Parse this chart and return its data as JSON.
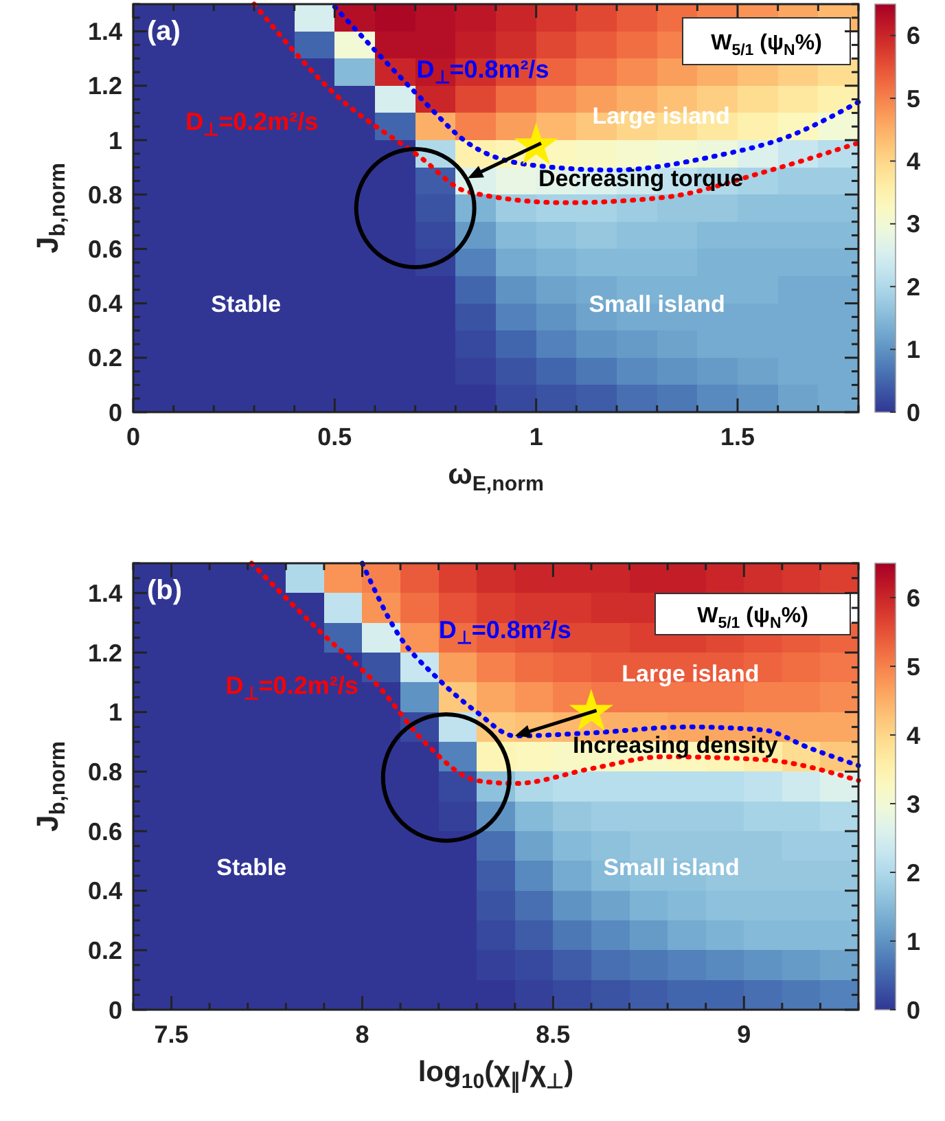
{
  "chart_data": [
    {
      "type": "heatmap",
      "xlabel": "ω$_{E,norm}$",
      "ylabel": "J$_{b,norm}$",
      "clabel": "W$_{5/1}$ (ψ$_{N}$%)",
      "x": [
        0.05,
        0.15,
        0.25,
        0.35,
        0.45,
        0.55,
        0.65,
        0.75,
        0.85,
        0.95,
        1.05,
        1.15,
        1.25,
        1.35,
        1.45,
        1.55,
        1.65,
        1.75
      ],
      "y": [
        1.45,
        1.35,
        1.25,
        1.15,
        1.05,
        0.95,
        0.85,
        0.75,
        0.65,
        0.55,
        0.45,
        0.35,
        0.25,
        0.15,
        0.05
      ],
      "xlim": [
        0,
        1.8
      ],
      "ylim": [
        0,
        1.5
      ],
      "clim": [
        0,
        6.5
      ],
      "cticks": [
        0,
        1,
        2,
        3,
        4,
        5,
        6
      ],
      "xticks": [
        0,
        {
          "value": 0.1,
          "label": null
        },
        {
          "value": 0.2,
          "label": null
        },
        {
          "value": 0.3,
          "label": null
        },
        {
          "value": 0.4,
          "label": null
        },
        0.5,
        {
          "value": 0.6,
          "label": null
        },
        {
          "value": 0.7,
          "label": null
        },
        {
          "value": 0.8,
          "label": null
        },
        {
          "value": 0.9,
          "label": null
        },
        1,
        {
          "value": 1.1,
          "label": null
        },
        {
          "value": 1.2,
          "label": null
        },
        {
          "value": 1.3,
          "label": null
        },
        {
          "value": 1.4,
          "label": null
        },
        1.5,
        {
          "value": 1.6,
          "label": null
        },
        {
          "value": 1.7,
          "label": null
        },
        {
          "value": 1.8,
          "label": null
        }
      ],
      "yticks": [
        0,
        {
          "value": 0.05,
          "label": null
        },
        {
          "value": 0.1,
          "label": null
        },
        {
          "value": 0.15,
          "label": null
        },
        0.2,
        {
          "value": 0.25,
          "label": null
        },
        {
          "value": 0.3,
          "label": null
        },
        {
          "value": 0.35,
          "label": null
        },
        0.4,
        {
          "value": 0.45,
          "label": null
        },
        {
          "value": 0.5,
          "label": null
        },
        {
          "value": 0.55,
          "label": null
        },
        0.6,
        {
          "value": 0.65,
          "label": null
        },
        {
          "value": 0.7,
          "label": null
        },
        {
          "value": 0.75,
          "label": null
        },
        0.8,
        {
          "value": 0.85,
          "label": null
        },
        {
          "value": 0.9,
          "label": null
        },
        {
          "value": 0.95,
          "label": null
        },
        1,
        {
          "value": 1.05,
          "label": null
        },
        {
          "value": 1.1,
          "label": null
        },
        {
          "value": 1.15,
          "label": null
        },
        1.2,
        {
          "value": 1.25,
          "label": null
        },
        {
          "value": 1.3,
          "label": null
        },
        {
          "value": 1.35,
          "label": null
        },
        1.4,
        {
          "value": 1.45,
          "label": null
        },
        {
          "value": 1.5,
          "label": null
        }
      ],
      "cells": [
        [
          0,
          0,
          0,
          0,
          2.5,
          6.3,
          6.4,
          6.3,
          6.2,
          6.0,
          5.8,
          5.6,
          5.4,
          5.2,
          5.0,
          4.8,
          4.6,
          4.4
        ],
        [
          0,
          0,
          0,
          0,
          0.5,
          3.0,
          6.3,
          6.3,
          6.1,
          5.9,
          5.6,
          5.4,
          5.2,
          5.0,
          null,
          null,
          null,
          null
        ],
        [
          0,
          0,
          0,
          0,
          0,
          1.5,
          6.0,
          6.2,
          5.9,
          5.6,
          5.3,
          5.1,
          4.9,
          4.7,
          4.5,
          4.3,
          4.1,
          3.9
        ],
        [
          0,
          0,
          0,
          0,
          0,
          0,
          2.5,
          6.0,
          5.6,
          5.2,
          4.9,
          4.7,
          4.5,
          4.3,
          4.1,
          3.9,
          3.7,
          3.5
        ],
        [
          0,
          0,
          0,
          0,
          0,
          0,
          0.5,
          4.5,
          5.0,
          4.7,
          4.4,
          4.2,
          4.0,
          3.9,
          3.7,
          3.5,
          3.3,
          3.0
        ],
        [
          0,
          0,
          0,
          0,
          0,
          0,
          0,
          2.0,
          3.5,
          3.4,
          3.3,
          3.2,
          3.1,
          3.0,
          2.9,
          2.6,
          2.3,
          2.1
        ],
        [
          0,
          0,
          0,
          0,
          0,
          0,
          0,
          0.4,
          2.6,
          2.8,
          2.7,
          2.6,
          2.4,
          2.2,
          2.0,
          1.9,
          1.8,
          1.8
        ],
        [
          0,
          0,
          0,
          0,
          0,
          0,
          0,
          0.3,
          1.4,
          1.8,
          1.9,
          1.9,
          1.8,
          1.7,
          1.7,
          1.6,
          1.6,
          1.6
        ],
        [
          0,
          0,
          0,
          0,
          0,
          0,
          0,
          0.2,
          1.1,
          1.5,
          1.6,
          1.7,
          1.6,
          1.6,
          1.5,
          1.5,
          1.5,
          1.5
        ],
        [
          0,
          0,
          0,
          0,
          0,
          0,
          0,
          0.1,
          0.8,
          1.3,
          1.4,
          1.5,
          1.5,
          1.5,
          1.4,
          1.4,
          1.4,
          1.4
        ],
        [
          0,
          0,
          0,
          0,
          0,
          0,
          0,
          0,
          0.5,
          1.0,
          1.2,
          1.3,
          1.4,
          1.4,
          1.4,
          1.4,
          1.3,
          1.3
        ],
        [
          0,
          0,
          0,
          0,
          0,
          0,
          0,
          0,
          0.3,
          0.8,
          1.0,
          1.2,
          1.3,
          1.3,
          1.3,
          1.3,
          1.3,
          1.3
        ],
        [
          0,
          0,
          0,
          0,
          0,
          0,
          0,
          0,
          0.2,
          0.5,
          0.8,
          1.0,
          1.1,
          1.2,
          1.3,
          1.3,
          1.3,
          1.3
        ],
        [
          0,
          0,
          0,
          0,
          0,
          0,
          0,
          0,
          0.1,
          0.3,
          0.5,
          0.7,
          0.9,
          1.0,
          1.1,
          1.2,
          1.3,
          1.3
        ],
        [
          0,
          0,
          0,
          0,
          0,
          0,
          0,
          0,
          0,
          0.2,
          0.3,
          0.4,
          0.6,
          0.7,
          0.9,
          1.0,
          1.2,
          1.3
        ]
      ],
      "series": [
        {
          "name": "D$_{⊥}$=0.2m²/s",
          "type": "line",
          "color": "#ff0000",
          "line_style": "dotted",
          "x": [
            0.3,
            0.5,
            0.71,
            0.83,
            1.07,
            1.32,
            1.56,
            1.8
          ],
          "values": [
            1.5,
            1.17,
            0.94,
            0.81,
            0.77,
            0.79,
            0.88,
            0.99
          ]
        },
        {
          "name": "D$_{⊥}$=0.8m²/s",
          "type": "line",
          "color": "#0000ff",
          "line_style": "dotted",
          "x": [
            0.5,
            0.6,
            0.71,
            0.83,
            0.98,
            1.19,
            1.44,
            1.62,
            1.8
          ],
          "values": [
            1.49,
            1.33,
            1.16,
            0.99,
            0.91,
            0.89,
            0.94,
            1.01,
            1.14
          ]
        },
        {
          "type": "scatter",
          "marker": "star",
          "color": "#ffee00",
          "x": [
            1
          ],
          "values": [
            0.98
          ]
        }
      ],
      "annotations": [
        "(a)",
        "Stable",
        "Small island",
        "Large island",
        "Decreasing torque"
      ]
    },
    {
      "type": "heatmap",
      "xlabel": "log$_{10}$(χ$_{∥}$/χ$_{⊥}$)",
      "ylabel": "J$_{b,norm}$",
      "clabel": "W$_{5/1}$ (ψ$_{N}$%)",
      "x": [
        7.45,
        7.55,
        7.65,
        7.75,
        7.85,
        7.95,
        8.05,
        8.15,
        8.25,
        8.35,
        8.45,
        8.55,
        8.65,
        8.75,
        8.85,
        8.95,
        9.05,
        9.15,
        9.25
      ],
      "y": [
        1.45,
        1.35,
        1.25,
        1.15,
        1.05,
        0.95,
        0.85,
        0.75,
        0.65,
        0.55,
        0.45,
        0.35,
        0.25,
        0.15,
        0.05
      ],
      "xlim": [
        7.4,
        9.3
      ],
      "ylim": [
        0,
        1.5
      ],
      "clim": [
        0,
        6.5
      ],
      "cticks": [
        0,
        1,
        2,
        3,
        4,
        5,
        6
      ],
      "xticks": [
        {
          "value": 7.4,
          "label": null
        },
        7.5,
        {
          "value": 7.6,
          "label": null
        },
        {
          "value": 7.7,
          "label": null
        },
        {
          "value": 7.8,
          "label": null
        },
        {
          "value": 7.9,
          "label": null
        },
        8,
        {
          "value": 8.1,
          "label": null
        },
        {
          "value": 8.2,
          "label": null
        },
        {
          "value": 8.3,
          "label": null
        },
        {
          "value": 8.4,
          "label": null
        },
        8.5,
        {
          "value": 8.6,
          "label": null
        },
        {
          "value": 8.7,
          "label": null
        },
        {
          "value": 8.8,
          "label": null
        },
        {
          "value": 8.9,
          "label": null
        },
        9,
        {
          "value": 9.1,
          "label": null
        },
        {
          "value": 9.2,
          "label": null
        },
        {
          "value": 9.3,
          "label": null
        }
      ],
      "yticks": [
        0,
        {
          "value": 0.05,
          "label": null
        },
        {
          "value": 0.1,
          "label": null
        },
        {
          "value": 0.15,
          "label": null
        },
        0.2,
        {
          "value": 0.25,
          "label": null
        },
        {
          "value": 0.3,
          "label": null
        },
        {
          "value": 0.35,
          "label": null
        },
        0.4,
        {
          "value": 0.45,
          "label": null
        },
        {
          "value": 0.5,
          "label": null
        },
        {
          "value": 0.55,
          "label": null
        },
        0.6,
        {
          "value": 0.65,
          "label": null
        },
        {
          "value": 0.7,
          "label": null
        },
        {
          "value": 0.75,
          "label": null
        },
        0.8,
        {
          "value": 0.85,
          "label": null
        },
        {
          "value": 0.9,
          "label": null
        },
        {
          "value": 0.95,
          "label": null
        },
        1,
        {
          "value": 1.05,
          "label": null
        },
        {
          "value": 1.1,
          "label": null
        },
        {
          "value": 1.15,
          "label": null
        },
        1.2,
        {
          "value": 1.25,
          "label": null
        },
        {
          "value": 1.3,
          "label": null
        },
        {
          "value": 1.35,
          "label": null
        },
        1.4,
        {
          "value": 1.45,
          "label": null
        },
        {
          "value": 1.5,
          "label": null
        }
      ],
      "cells": [
        [
          0,
          0,
          0,
          0,
          2.0,
          4.8,
          5.0,
          5.4,
          5.7,
          5.9,
          6.0,
          6.0,
          6.0,
          6.1,
          6.1,
          6.0,
          5.9,
          5.8,
          5.7
        ],
        [
          0,
          0,
          0,
          0,
          0,
          2.2,
          4.8,
          5.2,
          5.5,
          5.7,
          5.8,
          5.8,
          5.9,
          5.9,
          null,
          null,
          null,
          null,
          null
        ],
        [
          0,
          0,
          0,
          0,
          0,
          0.5,
          2.5,
          4.8,
          5.2,
          5.4,
          5.5,
          5.6,
          5.6,
          5.7,
          5.7,
          5.6,
          5.5,
          5.4,
          5.3
        ],
        [
          0,
          0,
          0,
          0,
          0,
          0,
          0.3,
          2.3,
          4.7,
          5.0,
          5.2,
          5.3,
          5.4,
          5.4,
          5.4,
          5.4,
          5.3,
          5.2,
          5.1
        ],
        [
          0,
          0,
          0,
          0,
          0,
          0,
          0,
          1.0,
          4.2,
          4.6,
          4.8,
          5.0,
          5.1,
          5.1,
          5.1,
          5.1,
          5.0,
          5.0,
          4.9
        ],
        [
          0,
          0,
          0,
          0,
          0,
          0,
          0,
          0.2,
          2.2,
          4.2,
          4.3,
          4.4,
          4.5,
          4.5,
          4.6,
          4.6,
          4.6,
          4.6,
          4.6
        ],
        [
          0,
          0,
          0,
          0,
          0,
          0,
          0,
          0,
          0.8,
          3.4,
          3.3,
          3.2,
          3.2,
          3.2,
          3.3,
          3.4,
          3.6,
          3.9,
          4.2
        ],
        [
          0,
          0,
          0,
          0,
          0,
          0,
          0,
          0,
          0.2,
          1.6,
          2.0,
          2.1,
          2.1,
          2.1,
          2.1,
          2.1,
          2.2,
          2.4,
          2.6
        ],
        [
          0,
          0,
          0,
          0,
          0,
          0,
          0,
          0,
          0.1,
          1.0,
          1.5,
          1.7,
          1.8,
          1.8,
          1.8,
          1.8,
          1.9,
          1.9,
          2.0
        ],
        [
          0,
          0,
          0,
          0,
          0,
          0,
          0,
          0,
          0,
          0.6,
          1.2,
          1.5,
          1.6,
          1.7,
          1.7,
          1.7,
          1.7,
          1.8,
          1.8
        ],
        [
          0,
          0,
          0,
          0,
          0,
          0,
          0,
          0,
          0,
          0.4,
          0.9,
          1.3,
          1.5,
          1.6,
          1.6,
          1.7,
          1.7,
          1.7,
          1.7
        ],
        [
          0,
          0,
          0,
          0,
          0,
          0,
          0,
          0,
          0,
          0.3,
          0.6,
          1.0,
          1.2,
          1.4,
          1.5,
          1.6,
          1.6,
          1.6,
          1.6
        ],
        [
          0,
          0,
          0,
          0,
          0,
          0,
          0,
          0,
          0,
          0.2,
          0.4,
          0.7,
          0.9,
          1.1,
          1.3,
          1.4,
          1.5,
          1.5,
          1.5
        ],
        [
          0,
          0,
          0,
          0,
          0,
          0,
          0,
          0,
          0,
          0.1,
          0.2,
          0.4,
          0.6,
          0.7,
          0.8,
          0.9,
          1.0,
          1.1,
          1.2
        ],
        [
          0,
          0,
          0,
          0,
          0,
          0,
          0,
          0,
          0,
          0,
          0.1,
          0.2,
          0.3,
          0.4,
          0.5,
          0.5,
          0.6,
          0.7,
          0.8
        ]
      ],
      "series": [
        {
          "name": "D$_{⊥}$=0.2m²/s",
          "type": "line",
          "color": "#ff0000",
          "line_style": "dotted",
          "x": [
            7.71,
            7.89,
            8.04,
            8.17,
            8.3,
            8.4,
            8.6,
            8.79,
            9.05,
            9.3
          ],
          "values": [
            1.5,
            1.27,
            1.09,
            0.89,
            0.77,
            0.76,
            0.81,
            0.85,
            0.84,
            0.77
          ]
        },
        {
          "name": "D$_{⊥}$=0.8m²/s",
          "type": "line",
          "color": "#0000ff",
          "line_style": "dotted",
          "x": [
            8.0,
            8.09,
            8.2,
            8.3,
            8.4,
            8.6,
            8.85,
            9.05,
            9.17,
            9.3
          ],
          "values": [
            1.5,
            1.27,
            1.11,
            1.0,
            0.92,
            0.93,
            0.95,
            0.94,
            0.88,
            0.82
          ]
        },
        {
          "type": "scatter",
          "marker": "star",
          "color": "#ffee00",
          "x": [
            8.6
          ],
          "values": [
            1.0
          ]
        }
      ],
      "annotations": [
        "(b)",
        "Stable",
        "Small island",
        "Large island",
        {
          "text": "Increasing density",
          "x": 8.4,
          "y": 0.92
        }
      ]
    }
  ]
}
